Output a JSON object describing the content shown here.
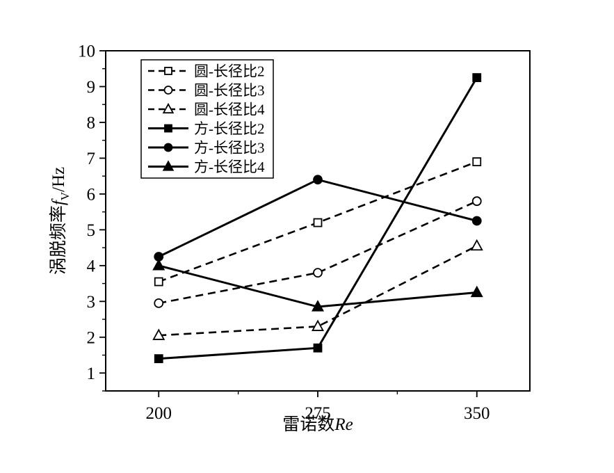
{
  "chart_data": {
    "type": "line",
    "title": "",
    "x": [
      200,
      275,
      350
    ],
    "series": [
      {
        "name": "圆-长径比2",
        "values": [
          3.55,
          5.2,
          6.9
        ],
        "marker": "square",
        "marker_fill": "open",
        "line_style": "dashed"
      },
      {
        "name": "圆-长径比3",
        "values": [
          2.95,
          3.8,
          5.8
        ],
        "marker": "circle",
        "marker_fill": "open",
        "line_style": "dashed"
      },
      {
        "name": "圆-长径比4",
        "values": [
          2.05,
          2.3,
          4.55
        ],
        "marker": "triangle",
        "marker_fill": "open",
        "line_style": "dashed"
      },
      {
        "name": "方-长径比2",
        "values": [
          1.4,
          1.7,
          9.25
        ],
        "marker": "square",
        "marker_fill": "filled",
        "line_style": "solid"
      },
      {
        "name": "方-长径比3",
        "values": [
          4.25,
          6.4,
          5.25
        ],
        "marker": "circle",
        "marker_fill": "filled",
        "line_style": "solid"
      },
      {
        "name": "方-长径比4",
        "values": [
          4.0,
          2.85,
          3.25
        ],
        "marker": "triangle",
        "marker_fill": "filled",
        "line_style": "solid"
      }
    ],
    "xlabel": "雷诺数Re",
    "xlabel_parts": {
      "prefix": "雷诺数",
      "italic": "Re"
    },
    "ylabel": "涡脱频率fV/Hz",
    "ylabel_parts": {
      "prefix": "涡脱频率",
      "italic": "f",
      "subscript": "V",
      "suffix": "/Hz"
    },
    "xlim": [
      175,
      375
    ],
    "ylim": [
      0.5,
      10
    ],
    "x_major_ticks": [
      200,
      275,
      350
    ],
    "x_minor_ticks": [
      237.5,
      312.5
    ],
    "y_major_ticks": [
      1,
      2,
      3,
      4,
      5,
      6,
      7,
      8,
      9,
      10
    ],
    "y_minor_step": 0.5,
    "legend_position": "top-left",
    "grid": false,
    "colors": {
      "line": "#000000",
      "background": "#ffffff"
    }
  }
}
